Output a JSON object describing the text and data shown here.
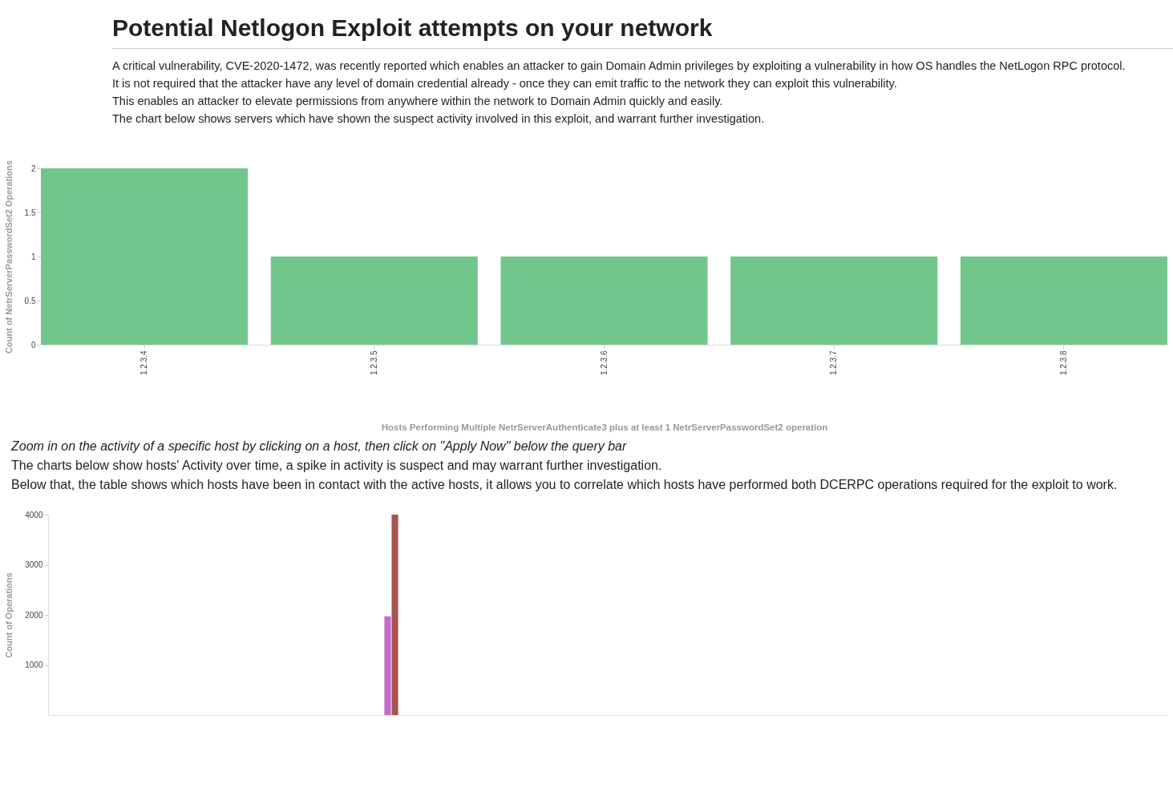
{
  "chart_data": [
    {
      "type": "bar",
      "title": "Potential Netlogon Exploit attempts on your network",
      "subtitle": "A critical vulnerability, CVE-2020-1472, was recently reported which enables an attacker to gain Domain Admin privileges by exploiting a vulnerability in how OS handles the NetLogon RPC protocol. It is not required that the attacker have any level of domain credential already - once they can emit traffic to the network they can exploit this vulnerability.\nThis enables an attacker to elevate permissions from anywhere within the network to Domain Admin quickly and easily.\nThe chart below shows servers which have shown the suspect activity involved in this exploit, and warrant further investigation.",
      "categories": [
        "1.2.3.4",
        "1.2.3.5",
        "1.2.3.6",
        "1.2.3.7",
        "1.2.3.8"
      ],
      "values": [
        2,
        1,
        1,
        1,
        1
      ],
      "color": "#72c68c",
      "ylim": [
        0,
        2
      ],
      "yticks": [
        0,
        0.5,
        1,
        1.5,
        2
      ],
      "xlabel": "Hosts Performing Multiple NetrServerAuthenticate3 plus at least 1 NetrServerPasswordSet2 operation",
      "ylabel": "Count of NetrServerPasswordSet2 Operations",
      "grid": false
    },
    {
      "type": "bar",
      "annotations": [
        "Zoom in on the activity of a specific host by clicking on a host, then click on \"Apply Now\" below the query bar",
        "The charts below show hosts' Activity over time, a spike in activity is suspect and may warrant further investigation.",
        "Below that, the table shows which hosts have been in contact with the active hosts, it allows you to correlate which hosts have performed both DCERPC operations required for the exploit to work."
      ],
      "categories": [
        null,
        null,
        null,
        null,
        null,
        null,
        null,
        null,
        null,
        null,
        null,
        null,
        null,
        null,
        null,
        null,
        null,
        null,
        null,
        null,
        null,
        null,
        null,
        null,
        null,
        null,
        null,
        null,
        null,
        null,
        null,
        null,
        null,
        null,
        null,
        null,
        null,
        null,
        null,
        null,
        null,
        null,
        null,
        null
      ],
      "series": [
        {
          "color": "#c36bc4",
          "values": [
            null,
            null,
            null,
            null,
            null,
            null,
            null,
            null,
            null,
            null,
            null,
            null,
            null,
            1970,
            null,
            null,
            null,
            null,
            null,
            null,
            null,
            null,
            null,
            null,
            null,
            null,
            null,
            null,
            null,
            null,
            null,
            null,
            null,
            null,
            null,
            null,
            null,
            null,
            null,
            null,
            null,
            null,
            null,
            null
          ]
        },
        {
          "color": "#a85450",
          "values": [
            null,
            null,
            null,
            null,
            null,
            null,
            null,
            null,
            null,
            null,
            null,
            null,
            null,
            4000,
            null,
            null,
            null,
            null,
            null,
            null,
            null,
            null,
            null,
            null,
            null,
            null,
            null,
            null,
            null,
            null,
            null,
            null,
            null,
            null,
            null,
            null,
            null,
            null,
            null,
            null,
            null,
            null,
            null,
            null
          ]
        }
      ],
      "ylim": [
        0,
        4000
      ],
      "yticks": [
        1000,
        2000,
        3000,
        4000
      ],
      "ylabel": "Count of Operations",
      "tick_labels": "y",
      "grid": false
    }
  ]
}
